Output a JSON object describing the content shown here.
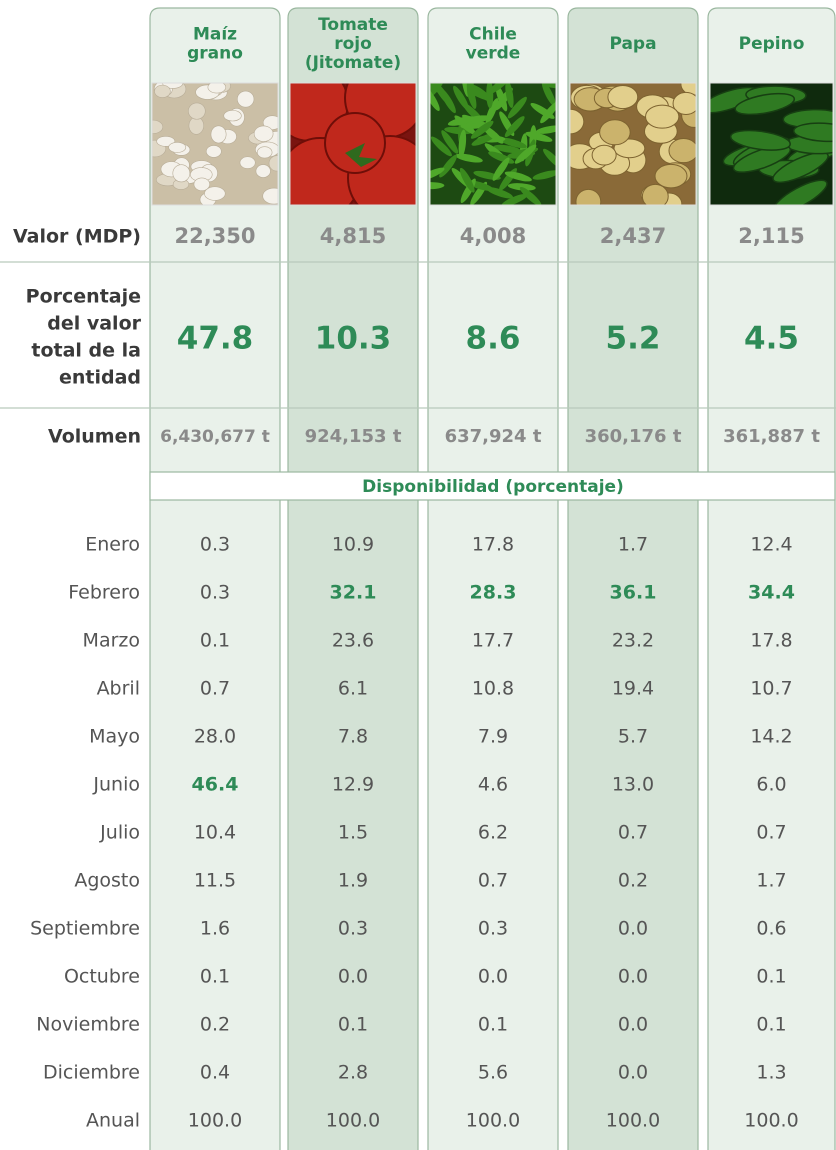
{
  "columns": [
    {
      "name": [
        "Maíz",
        "grano"
      ],
      "valor": "22,350",
      "porcentaje": "47.8",
      "volumen": "6,430,677 t"
    },
    {
      "name": [
        "Tomate",
        "rojo",
        "(Jitomate)"
      ],
      "valor": "4,815",
      "porcentaje": "10.3",
      "volumen": "924,153 t"
    },
    {
      "name": [
        "Chile",
        "verde"
      ],
      "valor": "4,008",
      "porcentaje": "8.6",
      "volumen": "637,924 t"
    },
    {
      "name": [
        "Papa"
      ],
      "valor": "2,437",
      "porcentaje": "5.2",
      "volumen": "360,176 t"
    },
    {
      "name": [
        "Pepino"
      ],
      "valor": "2,115",
      "porcentaje": "4.5",
      "volumen": "361,887 t"
    }
  ],
  "row_labels": {
    "valor": "Valor (MDP)",
    "porcentaje": [
      "Porcentaje",
      "del valor",
      "total de la",
      "entidad"
    ],
    "volumen": "Volumen"
  },
  "availability": {
    "title": "Disponibilidad (porcentaje)",
    "months": [
      {
        "label": "Enero",
        "values": [
          "0.3",
          "10.9",
          "17.8",
          "1.7",
          "12.4"
        ]
      },
      {
        "label": "Febrero",
        "values": [
          "0.3",
          "32.1",
          "28.3",
          "36.1",
          "34.4"
        ]
      },
      {
        "label": "Marzo",
        "values": [
          "0.1",
          "23.6",
          "17.7",
          "23.2",
          "17.8"
        ]
      },
      {
        "label": "Abril",
        "values": [
          "0.7",
          "6.1",
          "10.8",
          "19.4",
          "10.7"
        ]
      },
      {
        "label": "Mayo",
        "values": [
          "28.0",
          "7.8",
          "7.9",
          "5.7",
          "14.2"
        ]
      },
      {
        "label": "Junio",
        "values": [
          "46.4",
          "12.9",
          "4.6",
          "13.0",
          "6.0"
        ]
      },
      {
        "label": "Julio",
        "values": [
          "10.4",
          "1.5",
          "6.2",
          "0.7",
          "0.7"
        ]
      },
      {
        "label": "Agosto",
        "values": [
          "11.5",
          "1.9",
          "0.7",
          "0.2",
          "1.7"
        ]
      },
      {
        "label": "Septiembre",
        "values": [
          "1.6",
          "0.3",
          "0.3",
          "0.0",
          "0.6"
        ]
      },
      {
        "label": "Octubre",
        "values": [
          "0.1",
          "0.0",
          "0.0",
          "0.0",
          "0.1"
        ]
      },
      {
        "label": "Noviembre",
        "values": [
          "0.2",
          "0.1",
          "0.1",
          "0.0",
          "0.1"
        ]
      },
      {
        "label": "Diciembre",
        "values": [
          "0.4",
          "2.8",
          "5.6",
          "0.0",
          "1.3"
        ]
      }
    ],
    "annual": {
      "label": "Anual",
      "values": [
        "100.0",
        "100.0",
        "100.0",
        "100.0",
        "100.0"
      ]
    }
  }
}
